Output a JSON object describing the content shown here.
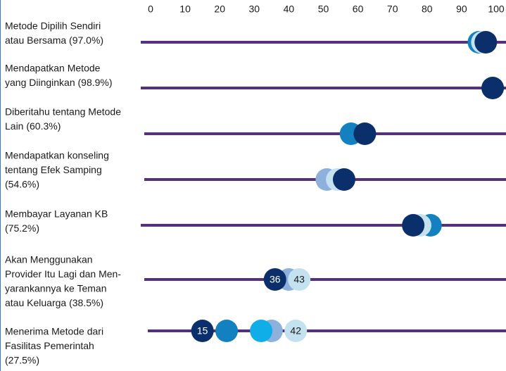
{
  "chart_data": {
    "type": "dot",
    "categories": [
      [
        "Metode Dipilih Sendiri",
        "atau Bersama (97.0%)"
      ],
      [
        "Mendapatkan Metode",
        "yang Diinginkan (98.9%)"
      ],
      [
        "Diberitahu tentang Metode",
        "Lain (60.3%)"
      ],
      [
        "Mendapatkan konseling",
        "tentang Efek Samping",
        "(54.6%)"
      ],
      [
        "Membayar Layanan KB",
        "(75.2%)"
      ],
      [
        "Akan Menggunakan",
        "Provider Itu Lagi dan Men-",
        "yarankannya ke Teman",
        "atau Keluarga (38.5%)"
      ],
      [
        "Menerima Metode dari",
        "Fasilitas Pemerintah",
        "(27.5%)"
      ]
    ],
    "series": [
      {
        "color": "#8db0dc",
        "values": [
          null,
          null,
          null,
          51,
          null,
          40,
          35
        ]
      },
      {
        "color": "#1380c0",
        "values": [
          95,
          null,
          58,
          null,
          81,
          null,
          22
        ]
      },
      {
        "color": "#10aee8",
        "values": [
          null,
          null,
          null,
          null,
          null,
          null,
          32
        ]
      },
      {
        "color": "#c4e1ef",
        "values": [
          96,
          null,
          null,
          54,
          78,
          43,
          42
        ],
        "value_labels": [
          null,
          null,
          null,
          null,
          null,
          "43",
          "42"
        ]
      },
      {
        "color": "#0b2f6b",
        "values": [
          97,
          99,
          62,
          56,
          76,
          36,
          15
        ],
        "value_labels": [
          null,
          null,
          null,
          null,
          null,
          "36",
          "15"
        ]
      }
    ],
    "line_color": "#55307f",
    "xlim": [
      0,
      100
    ],
    "xticks": [
      0,
      10,
      20,
      30,
      40,
      50,
      60,
      70,
      80,
      90,
      100
    ]
  }
}
